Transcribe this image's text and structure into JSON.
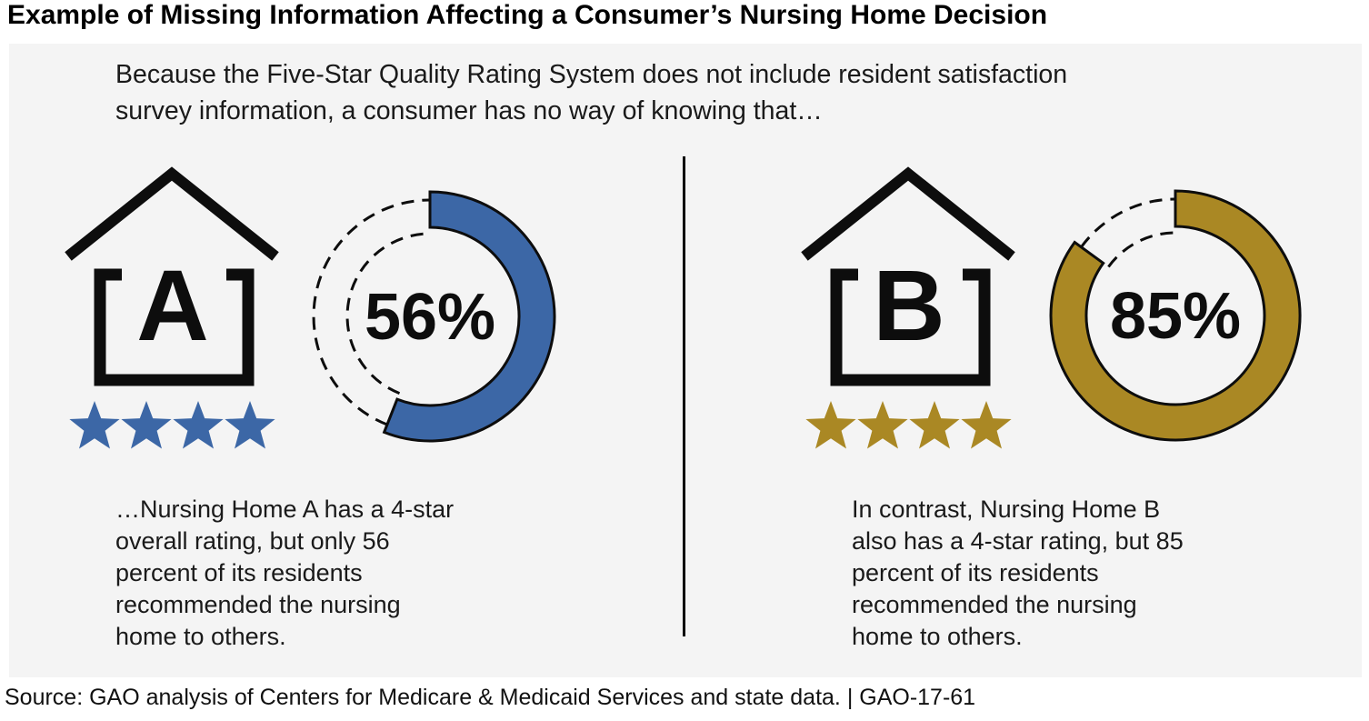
{
  "title": "Example of Missing Information Affecting a Consumer’s Nursing Home Decision",
  "intro": "Because the Five-Star Quality Rating System does not include resident satisfaction\nsurvey information, a consumer has no way of knowing that…",
  "colors": {
    "panel_background": "#F4F4F4",
    "ink": "#0D0D0D",
    "home_a_accent": "#3C67A6",
    "home_b_accent": "#AA8824"
  },
  "panels": [
    {
      "home_letter": "A",
      "star_rating": 4,
      "accent_color": "#3C67A6",
      "percent_label": "56%",
      "percent_value": 56,
      "caption": "…Nursing Home A has a 4-star\noverall rating, but only 56\npercent of its residents\nrecommended the nursing\nhome to others."
    },
    {
      "home_letter": "B",
      "star_rating": 4,
      "accent_color": "#AA8824",
      "percent_label": "85%",
      "percent_value": 85,
      "caption": "In contrast, Nursing Home B\nalso has a 4-star rating, but 85\npercent of its residents\nrecommended the nursing\nhome to others."
    }
  ],
  "source_line": "Source: GAO analysis of Centers for Medicare & Medicaid Services and state data.  |  GAO-17-61",
  "chart_data": [
    {
      "type": "pie",
      "subtype": "donut",
      "label": "Nursing Home A",
      "categories": [
        "Residents who recommended the nursing home",
        "Remainder"
      ],
      "values": [
        56,
        44
      ],
      "center_label": "56%",
      "color": "#3C67A6",
      "remainder_rendering": "dashed outline",
      "rating_stars": 4
    },
    {
      "type": "pie",
      "subtype": "donut",
      "label": "Nursing Home B",
      "categories": [
        "Residents who recommended the nursing home",
        "Remainder"
      ],
      "values": [
        85,
        15
      ],
      "center_label": "85%",
      "color": "#AA8824",
      "remainder_rendering": "dashed outline",
      "rating_stars": 4
    }
  ]
}
